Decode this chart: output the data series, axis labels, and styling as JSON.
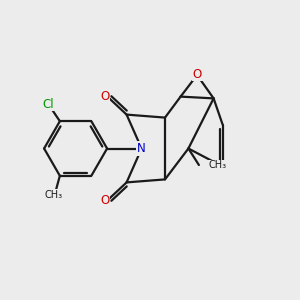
{
  "bg": "#ececec",
  "bc": "#1a1a1a",
  "lw": 1.6,
  "O_color": "#cc0000",
  "N_color": "#0000cc",
  "Cl_color": "#009900",
  "C_color": "#1a1a1a",
  "fs": 8.5,
  "figsize": [
    3.0,
    3.0
  ],
  "dpi": 100,
  "xlim": [
    0,
    10
  ],
  "ylim": [
    0,
    10
  ]
}
